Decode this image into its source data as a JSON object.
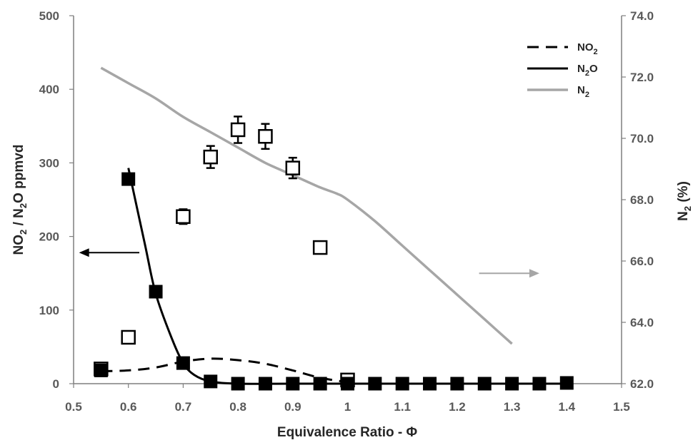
{
  "chart_data": {
    "type": "line",
    "title": "",
    "xlabel": "Equivalence Ratio - Φ",
    "ylabel": {
      "prefix": "NO",
      "sub1": "2",
      "mid": " / N",
      "sub2": "2",
      "suffix": "O ppmvd"
    },
    "y2label": {
      "prefix": "N",
      "sub": "2",
      "suffix": " (%)"
    },
    "xlim": [
      0.5,
      1.5
    ],
    "ylim": [
      0,
      500
    ],
    "y2lim": [
      62.0,
      74.0
    ],
    "x_ticks": [
      "0.5",
      "0.6",
      "0.7",
      "0.8",
      "0.9",
      "1",
      "1.1",
      "1.2",
      "1.3",
      "1.4",
      "1.5"
    ],
    "y_ticks": [
      "0",
      "100",
      "200",
      "300",
      "400",
      "500"
    ],
    "y2_ticks": [
      "62.0",
      "64.0",
      "66.0",
      "68.0",
      "70.0",
      "72.0",
      "74.0"
    ],
    "grid": false,
    "legend_position": "top-right",
    "legend": [
      {
        "label": "NO",
        "sub": "2",
        "suffix": "",
        "style": "dashed",
        "color": "#000000"
      },
      {
        "label": "N",
        "sub": "2",
        "suffix": "O",
        "style": "solid",
        "color": "#000000"
      },
      {
        "label": "N",
        "sub": "2",
        "suffix": "",
        "style": "solid",
        "color": "#a6a6a6"
      }
    ],
    "series": [
      {
        "name": "NO2",
        "marker": "open-square",
        "line": "dashed",
        "axis": "left",
        "x": [
          0.55,
          0.6,
          0.7,
          0.75,
          0.8,
          0.85,
          0.9,
          0.95,
          1.0
        ],
        "y": [
          20,
          63,
          227,
          308,
          345,
          336,
          293,
          185,
          5
        ],
        "err": [
          6,
          6,
          10,
          15,
          18,
          17,
          14,
          7,
          4
        ],
        "fit_x": [
          0.55,
          0.6,
          0.65,
          0.7,
          0.75,
          0.8,
          0.85,
          0.9,
          0.95,
          1.0
        ],
        "fit_y": [
          17,
          18,
          22,
          30,
          34,
          32,
          27,
          18,
          8,
          2
        ]
      },
      {
        "name": "N2O",
        "marker": "filled-square",
        "line": "solid",
        "axis": "left",
        "x": [
          0.55,
          0.6,
          0.65,
          0.7,
          0.75,
          0.8,
          0.85,
          0.9,
          0.95,
          1.0,
          1.05,
          1.1,
          1.15,
          1.2,
          1.25,
          1.3,
          1.35,
          1.4
        ],
        "y": [
          18,
          278,
          125,
          28,
          3,
          0,
          0,
          0,
          0,
          0,
          0,
          0,
          0,
          0,
          0,
          0,
          0,
          1
        ],
        "fit_x": [
          0.6,
          0.63,
          0.65,
          0.68,
          0.7,
          0.72,
          0.75,
          0.8,
          0.9,
          1.0,
          1.2,
          1.4
        ],
        "fit_y": [
          293,
          190,
          122,
          60,
          28,
          12,
          3,
          0,
          0,
          0,
          0,
          0
        ]
      },
      {
        "name": "N2",
        "marker": "none",
        "line": "solid",
        "axis": "right",
        "color": "#a6a6a6",
        "x": [
          0.55,
          0.6,
          0.65,
          0.7,
          0.75,
          0.8,
          0.85,
          0.9,
          0.95,
          0.98,
          1.0,
          1.05,
          1.1,
          1.15,
          1.2,
          1.25,
          1.3
        ],
        "y": [
          72.3,
          71.8,
          71.3,
          70.7,
          70.2,
          69.7,
          69.2,
          68.8,
          68.4,
          68.2,
          68.0,
          67.3,
          66.5,
          65.7,
          64.9,
          64.1,
          63.3
        ]
      }
    ],
    "annotations": [
      {
        "type": "arrow",
        "direction": "left",
        "axis": "left",
        "color": "#000000",
        "x_from": 0.62,
        "x_to": 0.51,
        "y": 178
      },
      {
        "type": "arrow",
        "direction": "right",
        "axis": "right",
        "color": "#a6a6a6",
        "x_from": 1.24,
        "x_to": 1.35,
        "y": 65.6
      }
    ]
  }
}
